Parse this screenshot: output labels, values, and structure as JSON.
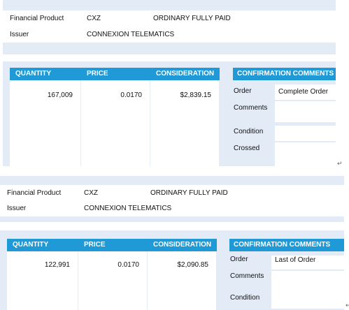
{
  "blocks": [
    {
      "product": {
        "label": "Financial Product",
        "code": "CXZ",
        "description": "ORDINARY FULLY PAID"
      },
      "issuer": {
        "label": "Issuer",
        "name": "CONNEXION TELEMATICS"
      },
      "table": {
        "headers": [
          "QUANTITY",
          "PRICE",
          "CONSIDERATION"
        ],
        "values": [
          "167,009",
          "0.0170",
          "$2,839.15"
        ]
      },
      "confirmation": {
        "title": "CONFIRMATION COMMENTS",
        "rows": [
          [
            "Order",
            "Complete Order"
          ],
          [
            "Comments",
            ""
          ],
          [
            "Condition",
            ""
          ],
          [
            "Crossed",
            ""
          ]
        ]
      }
    },
    {
      "product": {
        "label": "Financial Product",
        "code": "CXZ",
        "description": "ORDINARY FULLY PAID"
      },
      "issuer": {
        "label": "Issuer",
        "name": "CONNEXION TELEMATICS"
      },
      "table": {
        "headers": [
          "QUANTITY",
          "PRICE",
          "CONSIDERATION"
        ],
        "values": [
          "122,991",
          "0.0170",
          "$2,090.85"
        ]
      },
      "confirmation": {
        "title": "CONFIRMATION COMMENTS",
        "rows": [
          [
            "Order",
            "Last of Order"
          ],
          [
            "Comments",
            ""
          ],
          [
            "Condition",
            ""
          ]
        ]
      }
    }
  ]
}
